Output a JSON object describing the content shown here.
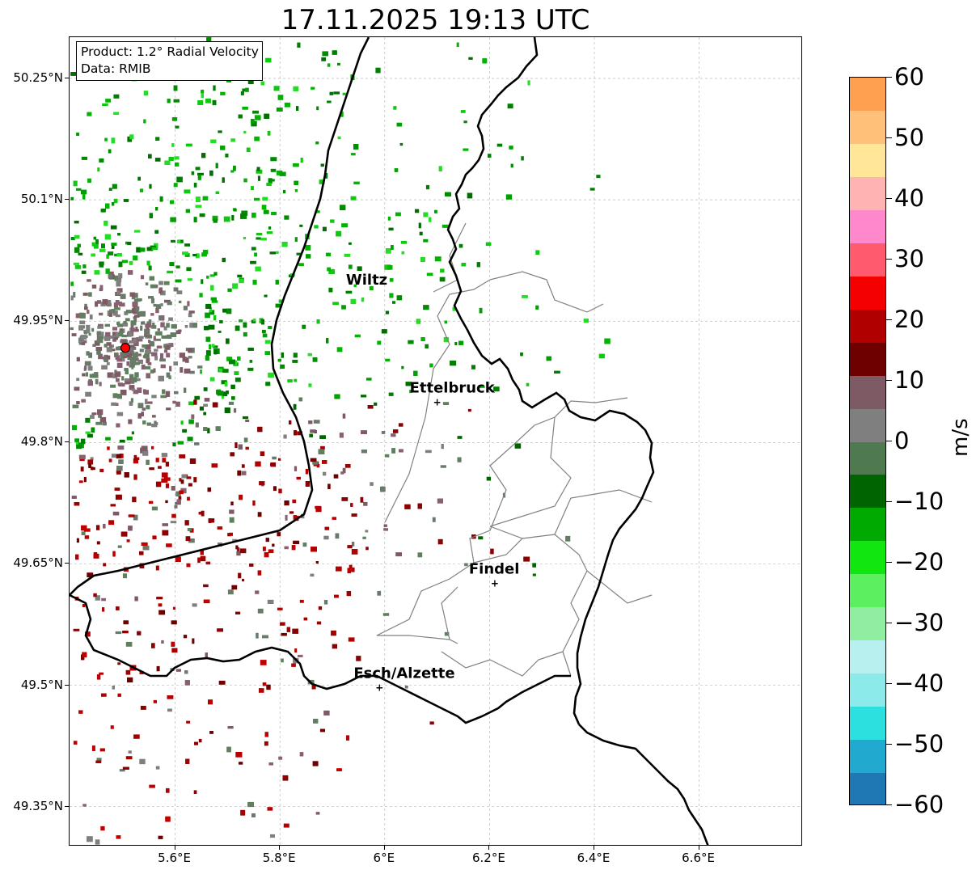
{
  "title": "17.11.2025 19:13 UTC",
  "info_box": {
    "product": "Product: 1.2° Radial Velocity",
    "data": "Data: RMIB"
  },
  "map": {
    "lat_ticks": [
      "50.25°N",
      "50.1°N",
      "49.95°N",
      "49.8°N",
      "49.65°N",
      "49.5°N",
      "49.35°N"
    ],
    "lon_ticks": [
      "5.6°E",
      "5.8°E",
      "6°E",
      "6.2°E",
      "6.4°E",
      "6.6°E"
    ],
    "places": [
      {
        "name": "Wiltz"
      },
      {
        "name": "Ettelbruck"
      },
      {
        "name": "Findel"
      },
      {
        "name": "Esch/Alzette"
      }
    ],
    "radar_site_color": "#ff0000"
  },
  "colorbar": {
    "unit": "m/s",
    "tick_labels": [
      "60",
      "50",
      "40",
      "30",
      "20",
      "10",
      "0",
      "−10",
      "−20",
      "−30",
      "−40",
      "−50",
      "−60"
    ],
    "range": [
      -60,
      60
    ],
    "colors_bottom_to_top": [
      "#1f77b4",
      "#21a9cf",
      "#2ce0e0",
      "#8deaea",
      "#b8f0f0",
      "#90eea0",
      "#5cf060",
      "#11e611",
      "#00aa00",
      "#006400",
      "#4f7a4f",
      "#7f7f7f",
      "#7d5a64",
      "#6e0000",
      "#b00000",
      "#f50000",
      "#ff5a6e",
      "#ff88cc",
      "#ffb3b3",
      "#ffe699",
      "#ffc07a",
      "#ffa050"
    ]
  }
}
